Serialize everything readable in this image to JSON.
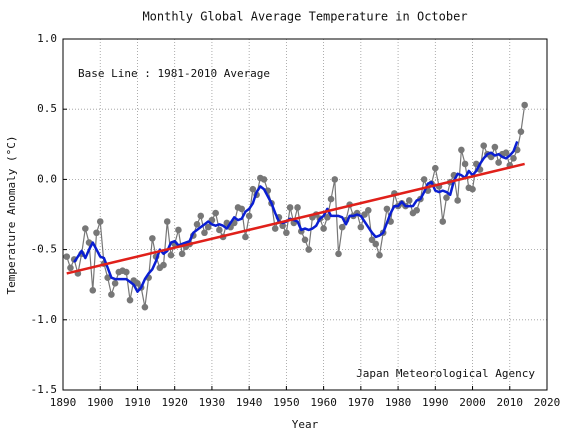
{
  "chart_data": {
    "type": "line",
    "title": "Monthly Global Average Temperature in October",
    "xlabel": "Year",
    "ylabel": "Temperature Anomaly (°C)",
    "annotations": [
      "Base Line : 1981-2010 Average",
      "Japan Meteorological Agency"
    ],
    "xlim": [
      1890,
      2020
    ],
    "xticks": [
      1890,
      1900,
      1910,
      1920,
      1930,
      1940,
      1950,
      1960,
      1970,
      1980,
      1990,
      2000,
      2010,
      2020
    ],
    "ylim": [
      -1.5,
      1.0
    ],
    "yticks": [
      {
        "value": 1.0,
        "label": "1.0"
      },
      0.5,
      {
        "value": 0.0,
        "label": "0.0"
      },
      -0.5,
      {
        "value": -1.0,
        "label": "-1.0"
      },
      -1.5
    ],
    "grid": true,
    "x": [
      1891,
      1892,
      1893,
      1894,
      1895,
      1896,
      1897,
      1898,
      1899,
      1900,
      1901,
      1902,
      1903,
      1904,
      1905,
      1906,
      1907,
      1908,
      1909,
      1910,
      1911,
      1912,
      1913,
      1914,
      1915,
      1916,
      1917,
      1918,
      1919,
      1920,
      1921,
      1922,
      1923,
      1924,
      1925,
      1926,
      1927,
      1928,
      1929,
      1930,
      1931,
      1932,
      1933,
      1934,
      1935,
      1936,
      1937,
      1938,
      1939,
      1940,
      1941,
      1942,
      1943,
      1944,
      1945,
      1946,
      1947,
      1948,
      1949,
      1950,
      1951,
      1952,
      1953,
      1954,
      1955,
      1956,
      1957,
      1958,
      1959,
      1960,
      1961,
      1962,
      1963,
      1964,
      1965,
      1966,
      1967,
      1968,
      1969,
      1970,
      1971,
      1972,
      1973,
      1974,
      1975,
      1976,
      1977,
      1978,
      1979,
      1980,
      1981,
      1982,
      1983,
      1984,
      1985,
      1986,
      1987,
      1988,
      1989,
      1990,
      1991,
      1992,
      1993,
      1994,
      1995,
      1996,
      1997,
      1998,
      1999,
      2000,
      2001,
      2002,
      2003,
      2004,
      2005,
      2006,
      2007,
      2008,
      2009,
      2010,
      2011,
      2012,
      2013,
      2014
    ],
    "series": [
      {
        "color": "#777777",
        "markers": true,
        "width": 1.2,
        "values": [
          -0.55,
          -0.63,
          -0.57,
          -0.67,
          -0.53,
          -0.35,
          -0.45,
          -0.79,
          -0.38,
          -0.3,
          -0.6,
          -0.7,
          -0.82,
          -0.74,
          -0.66,
          -0.65,
          -0.66,
          -0.86,
          -0.72,
          -0.74,
          -0.77,
          -0.91,
          -0.7,
          -0.42,
          -0.55,
          -0.63,
          -0.61,
          -0.3,
          -0.54,
          -0.46,
          -0.36,
          -0.53,
          -0.48,
          -0.46,
          -0.4,
          -0.32,
          -0.26,
          -0.38,
          -0.34,
          -0.29,
          -0.24,
          -0.36,
          -0.41,
          -0.31,
          -0.34,
          -0.31,
          -0.2,
          -0.21,
          -0.41,
          -0.26,
          -0.07,
          -0.11,
          0.01,
          0.0,
          -0.08,
          -0.17,
          -0.35,
          -0.27,
          -0.33,
          -0.38,
          -0.2,
          -0.31,
          -0.2,
          -0.37,
          -0.43,
          -0.5,
          -0.27,
          -0.25,
          -0.28,
          -0.35,
          -0.27,
          -0.14,
          0.0,
          -0.53,
          -0.34,
          -0.29,
          -0.18,
          -0.26,
          -0.24,
          -0.34,
          -0.25,
          -0.22,
          -0.43,
          -0.46,
          -0.54,
          -0.38,
          -0.21,
          -0.3,
          -0.1,
          -0.19,
          -0.17,
          -0.19,
          -0.15,
          -0.24,
          -0.22,
          -0.14,
          0.0,
          -0.08,
          -0.03,
          0.08,
          -0.05,
          -0.3,
          -0.13,
          -0.02,
          0.03,
          -0.15,
          0.21,
          0.11,
          -0.06,
          -0.07,
          0.11,
          0.07,
          0.24,
          0.18,
          0.16,
          0.23,
          0.12,
          0.18,
          0.19,
          0.1,
          0.15,
          0.21,
          0.34,
          0.53
        ]
      },
      {
        "color": "#0a1ed2",
        "markers": false,
        "width": 2.5,
        "values": [
          null,
          null,
          -0.59,
          -0.55,
          -0.51,
          -0.56,
          -0.5,
          -0.45,
          -0.5,
          -0.55,
          -0.56,
          -0.63,
          -0.7,
          -0.71,
          -0.71,
          -0.71,
          -0.71,
          -0.73,
          -0.75,
          -0.8,
          -0.77,
          -0.71,
          -0.67,
          -0.64,
          -0.58,
          -0.5,
          -0.53,
          -0.51,
          -0.45,
          -0.44,
          -0.47,
          -0.46,
          -0.45,
          -0.44,
          -0.38,
          -0.36,
          -0.34,
          -0.32,
          -0.3,
          -0.32,
          -0.33,
          -0.32,
          -0.33,
          -0.35,
          -0.31,
          -0.27,
          -0.29,
          -0.28,
          -0.23,
          -0.21,
          -0.17,
          -0.09,
          -0.05,
          -0.07,
          -0.12,
          -0.17,
          -0.24,
          -0.3,
          -0.31,
          -0.3,
          -0.28,
          -0.29,
          -0.3,
          -0.36,
          -0.35,
          -0.36,
          -0.35,
          -0.33,
          -0.28,
          -0.26,
          -0.21,
          -0.26,
          -0.26,
          -0.26,
          -0.27,
          -0.32,
          -0.26,
          -0.26,
          -0.25,
          -0.26,
          -0.3,
          -0.34,
          -0.38,
          -0.41,
          -0.4,
          -0.38,
          -0.31,
          -0.24,
          -0.19,
          -0.19,
          -0.16,
          -0.19,
          -0.19,
          -0.19,
          -0.15,
          -0.14,
          -0.09,
          -0.03,
          -0.02,
          -0.08,
          -0.09,
          -0.08,
          -0.09,
          -0.11,
          -0.01,
          0.04,
          0.03,
          0.01,
          0.06,
          0.03,
          0.06,
          0.11,
          0.15,
          0.18,
          0.19,
          0.17,
          0.18,
          0.16,
          0.15,
          0.17,
          0.2,
          0.27,
          null,
          null
        ]
      },
      {
        "color": "#e0201a",
        "markers": false,
        "width": 2.5,
        "x": [
          1891,
          2014
        ],
        "values": [
          -0.67,
          0.11
        ]
      }
    ]
  }
}
